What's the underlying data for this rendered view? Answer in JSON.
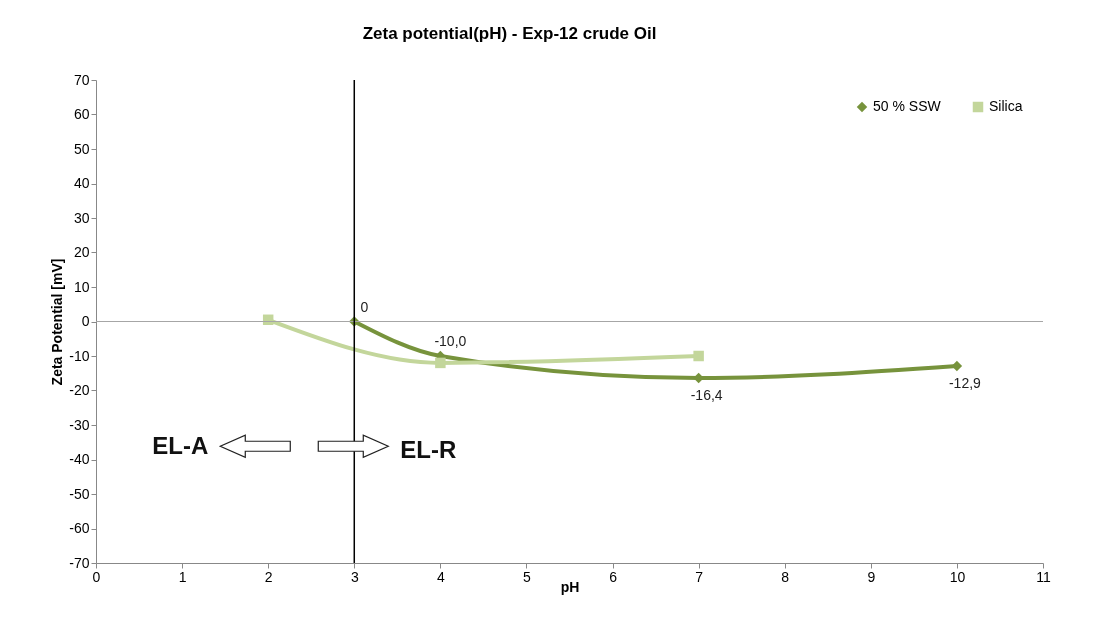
{
  "chart_data": {
    "type": "line",
    "title": "Zeta potential(pH) - Exp-12 crude Oil",
    "xlabel": "pH",
    "ylabel": "Zeta Potential [mV]",
    "xlim": [
      0,
      11
    ],
    "xticks": [
      0,
      1,
      2,
      3,
      4,
      5,
      6,
      7,
      8,
      9,
      10,
      11
    ],
    "ylim": [
      -70,
      70
    ],
    "yticks": [
      -70,
      -60,
      -50,
      -40,
      -30,
      -20,
      -10,
      0,
      10,
      20,
      30,
      40,
      50,
      60,
      70
    ],
    "series": [
      {
        "name": "50 % SSW",
        "color": "#77933c",
        "marker": "diamond",
        "x": [
          3,
          4,
          7,
          10
        ],
        "values": [
          0,
          -10.0,
          -16.4,
          -12.9
        ],
        "value_labels": [
          "0",
          "-10,0",
          "-16,4",
          "-12,9"
        ]
      },
      {
        "name": "Silica",
        "color": "#c3d69b",
        "marker": "square",
        "x": [
          2,
          4,
          7
        ],
        "values": [
          0.5,
          -12,
          -10
        ]
      }
    ],
    "ref_lines": [
      {
        "axis": "y",
        "value": 0,
        "color": "#a6a6a6"
      },
      {
        "axis": "x",
        "value": 3,
        "color": "#000000"
      }
    ],
    "annotations": [
      "EL-A",
      "EL-R"
    ],
    "legend": "top right",
    "grid": false
  }
}
